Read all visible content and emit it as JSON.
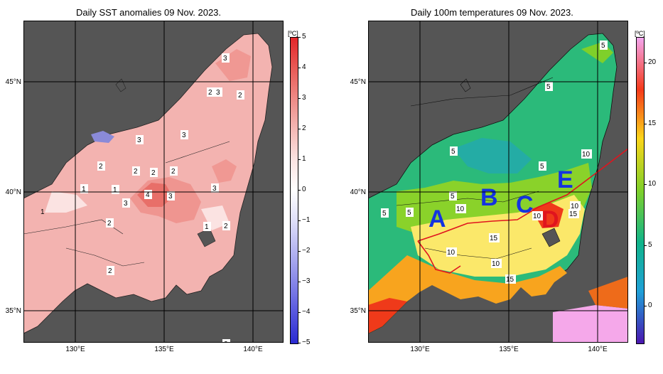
{
  "left_map": {
    "title": "Daily SST anomalies 09 Nov. 2023.",
    "unit": "[ºC]",
    "colorbar_ticks": [
      "5",
      "4",
      "3",
      "2",
      "1",
      "0",
      "−1",
      "−2",
      "−3",
      "−4",
      "−5"
    ],
    "colorbar_colors": [
      "#e3262a",
      "#e85a56",
      "#ee8a86",
      "#f4b8b5",
      "#fbe3e2",
      "#ffffff",
      "#dfdff9",
      "#b4b4f1",
      "#8686e8",
      "#5757de",
      "#2a2ad1"
    ],
    "contour_labels": [
      "3",
      "2",
      "3",
      "2",
      "3",
      "3",
      "2",
      "2",
      "2",
      "1",
      "1",
      "2",
      "4",
      "3",
      "3",
      "3",
      "2",
      "1",
      "2",
      "2",
      "2"
    ],
    "land_color": "#555555"
  },
  "right_map": {
    "title": "Daily 100m temperatures 09 Nov. 2023.",
    "unit": "[ºC]",
    "colorbar_ticks": [
      "20",
      "15",
      "10",
      "5",
      "0"
    ],
    "colorbar_colors": [
      "#f3a6ee",
      "#f53a1a",
      "#fbd51a",
      "#7fd02a",
      "#10b48a",
      "#1fa0d8",
      "#4a16b0"
    ],
    "region_labels": [
      "A",
      "B",
      "C",
      "D",
      "E"
    ],
    "region_colors": [
      "#1433e0",
      "#1433e0",
      "#1433e0",
      "#e0141e",
      "#1433e0"
    ],
    "contour_labels": [
      "5",
      "5",
      "5",
      "5",
      "5",
      "5",
      "5",
      "10",
      "10",
      "10",
      "10",
      "15",
      "15",
      "10",
      "15",
      "10",
      "5"
    ],
    "land_color": "#555555"
  },
  "axes": {
    "y_labels": [
      "45°N",
      "40°N",
      "35°N"
    ],
    "x_labels": [
      "130°E",
      "135°E",
      "140°E"
    ]
  }
}
